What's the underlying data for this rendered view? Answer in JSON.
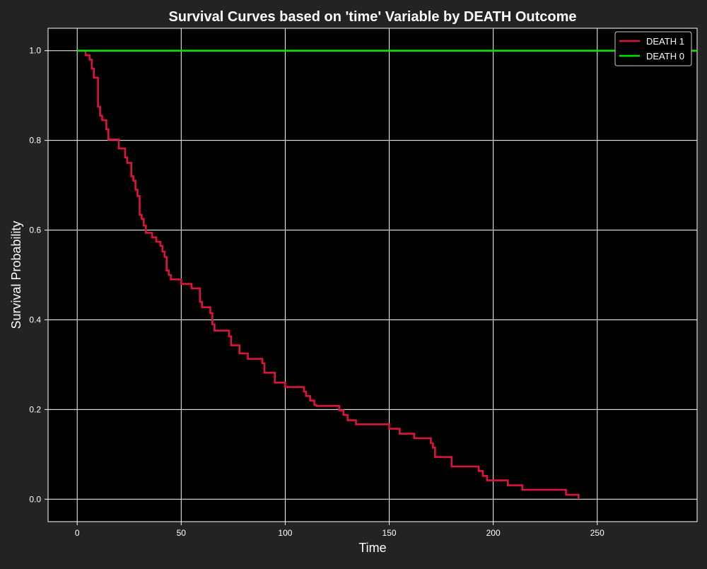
{
  "chart_data": {
    "type": "line",
    "title": "Survival Curves based on 'time' Variable by DEATH Outcome",
    "xlabel": "Time",
    "ylabel": "Survival Probability",
    "xlim": [
      -14,
      298
    ],
    "ylim": [
      -0.05,
      1.05
    ],
    "xticks": [
      0,
      50,
      100,
      150,
      200,
      250
    ],
    "yticks": [
      0.0,
      0.2,
      0.4,
      0.6,
      0.8,
      1.0
    ],
    "xtick_labels": [
      "0",
      "50",
      "100",
      "150",
      "200",
      "250"
    ],
    "ytick_labels": [
      "0.0",
      "0.2",
      "0.4",
      "0.6",
      "0.8",
      "1.0"
    ],
    "grid": true,
    "legend_position": "top-right",
    "step": true,
    "series": [
      {
        "name": "DEATH 1",
        "color": "#dc143c",
        "x": [
          0,
          4,
          6,
          7,
          8,
          10,
          11,
          12,
          14,
          15,
          20,
          23,
          24,
          26,
          27,
          28,
          29,
          30,
          31,
          32,
          33,
          36,
          38,
          40,
          41,
          42,
          43,
          44,
          45,
          50,
          55,
          59,
          60,
          61,
          64,
          65,
          66,
          68,
          73,
          74,
          77,
          78,
          82,
          89,
          90,
          95,
          100,
          109,
          110,
          112,
          114,
          115,
          126,
          128,
          130,
          132,
          134,
          139,
          150,
          155,
          162,
          170,
          171,
          172,
          180,
          193,
          195,
          197,
          198,
          200,
          207,
          214,
          235,
          241
        ],
        "y": [
          1.0,
          0.99,
          0.98,
          0.96,
          0.94,
          0.875,
          0.855,
          0.845,
          0.825,
          0.802,
          0.782,
          0.762,
          0.75,
          0.72,
          0.71,
          0.69,
          0.676,
          0.634,
          0.625,
          0.61,
          0.594,
          0.584,
          0.574,
          0.565,
          0.552,
          0.54,
          0.51,
          0.5,
          0.49,
          0.48,
          0.47,
          0.44,
          0.428,
          0.428,
          0.415,
          0.39,
          0.376,
          0.376,
          0.363,
          0.343,
          0.343,
          0.325,
          0.313,
          0.303,
          0.282,
          0.26,
          0.25,
          0.24,
          0.23,
          0.22,
          0.21,
          0.208,
          0.198,
          0.188,
          0.176,
          0.176,
          0.167,
          0.167,
          0.157,
          0.146,
          0.136,
          0.125,
          0.115,
          0.094,
          0.073,
          0.063,
          0.052,
          0.042,
          0.042,
          0.042,
          0.031,
          0.021,
          0.01,
          0.0
        ]
      },
      {
        "name": "DEATH 0",
        "color": "#00e600",
        "x": [
          0,
          298
        ],
        "y": [
          1.0,
          1.0
        ]
      }
    ]
  }
}
